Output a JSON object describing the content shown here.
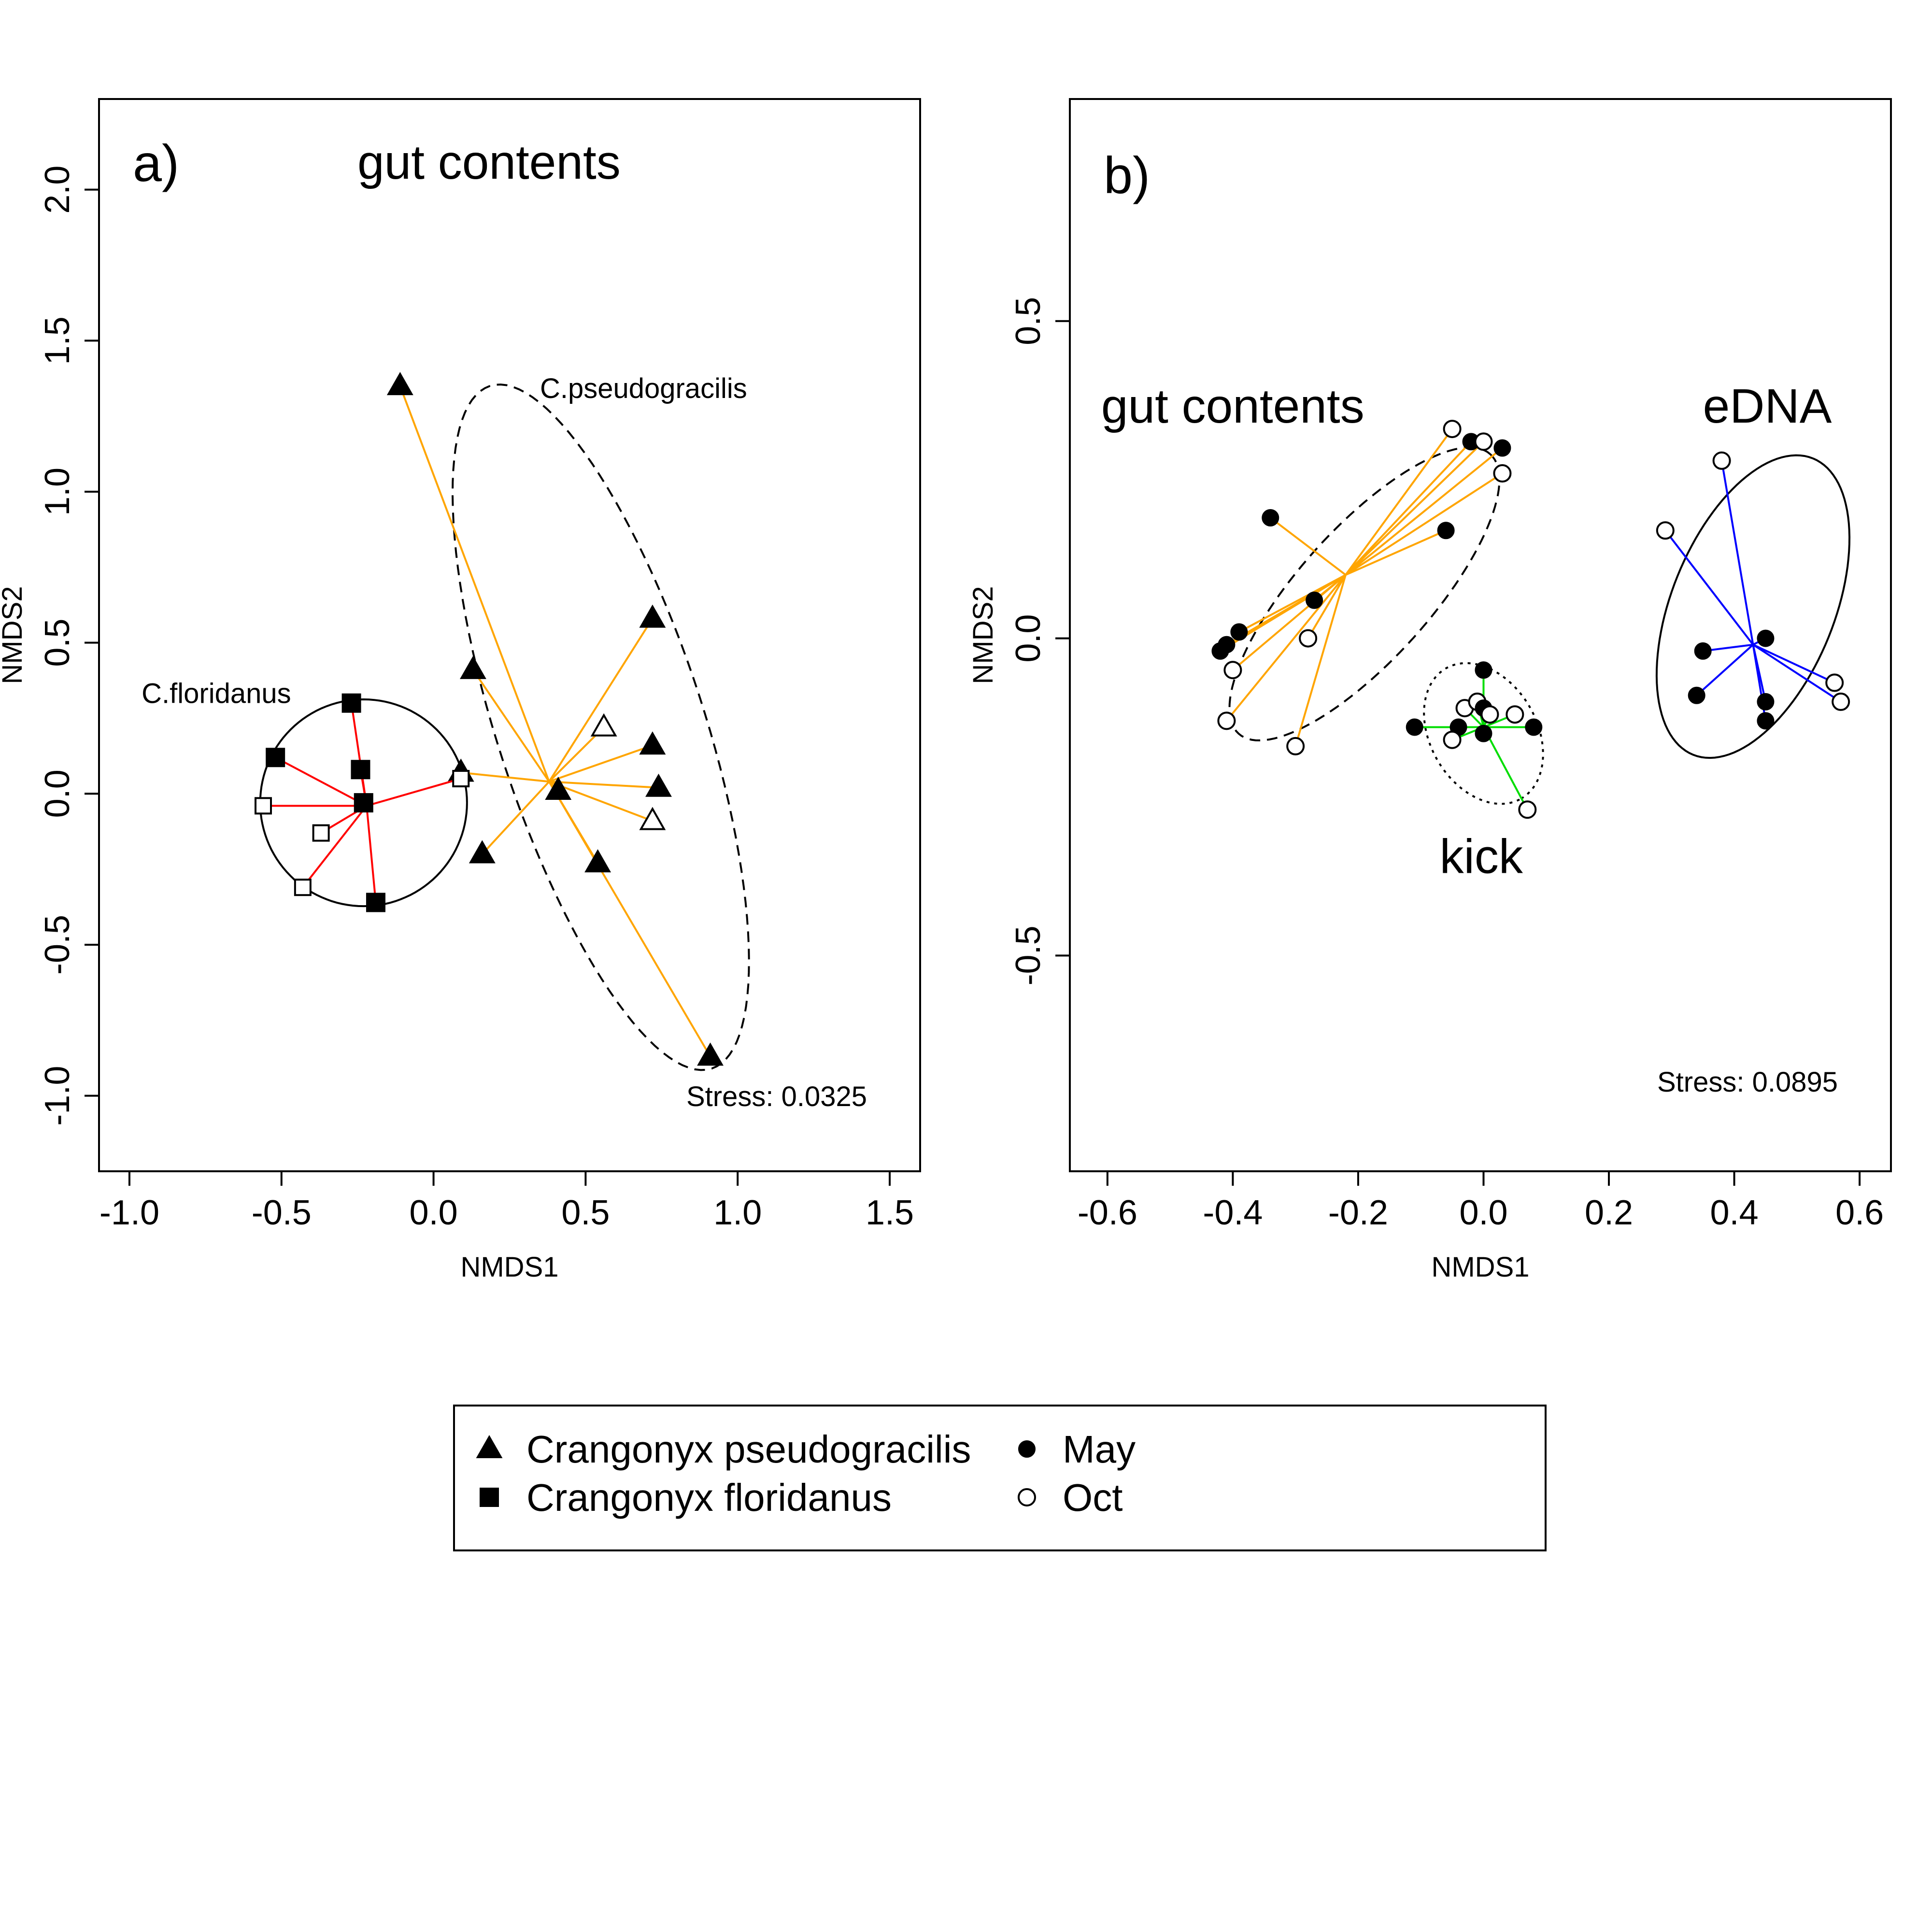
{
  "chart_data": [
    {
      "type": "scatter",
      "panel_label": "a)",
      "title": "gut contents",
      "xlabel": "NMDS1",
      "ylabel": "NMDS2",
      "xlim": [
        -1.1,
        1.6
      ],
      "ylim": [
        -1.25,
        2.3
      ],
      "xticks": [
        "-1.0",
        "-0.5",
        "0.0",
        "0.5",
        "1.0",
        "1.5"
      ],
      "xtick_values": [
        -1.0,
        -0.5,
        0.0,
        0.5,
        1.0,
        1.5
      ],
      "yticks": [
        "-1.0",
        "-0.5",
        "0.0",
        "0.5",
        "1.0",
        "1.5",
        "2.0"
      ],
      "ytick_values": [
        -1.0,
        -0.5,
        0.0,
        0.5,
        1.0,
        1.5,
        2.0
      ],
      "stress": "Stress: 0.0325",
      "groups": [
        {
          "label": "C.pseudogracilis",
          "label_pos": [
            0.35,
            1.31
          ],
          "color": "#FFA500",
          "ellipse_style": "dashed",
          "centroid": [
            0.38,
            0.04
          ],
          "ellipse": {
            "cx": 0.55,
            "cy": 0.22,
            "rx": 1.18,
            "ry": 0.34,
            "angle_deg": 108
          },
          "points": [
            {
              "x": -0.11,
              "y": 1.35,
              "shape": "triangle",
              "month": "May"
            },
            {
              "x": 0.72,
              "y": 0.58,
              "shape": "triangle",
              "month": "May"
            },
            {
              "x": 0.13,
              "y": 0.41,
              "shape": "triangle",
              "month": "May"
            },
            {
              "x": 0.56,
              "y": 0.22,
              "shape": "triangle",
              "month": "Oct"
            },
            {
              "x": 0.72,
              "y": 0.16,
              "shape": "triangle",
              "month": "May"
            },
            {
              "x": 0.74,
              "y": 0.02,
              "shape": "triangle",
              "month": "May"
            },
            {
              "x": 0.41,
              "y": 0.01,
              "shape": "triangle",
              "month": "May"
            },
            {
              "x": 0.09,
              "y": 0.07,
              "shape": "triangle",
              "month": "May"
            },
            {
              "x": 0.72,
              "y": -0.09,
              "shape": "triangle",
              "month": "Oct"
            },
            {
              "x": 0.16,
              "y": -0.2,
              "shape": "triangle",
              "month": "May"
            },
            {
              "x": 0.54,
              "y": -0.23,
              "shape": "triangle",
              "month": "May"
            },
            {
              "x": 0.91,
              "y": -0.87,
              "shape": "triangle",
              "month": "May"
            }
          ]
        },
        {
          "label": "C.floridanus",
          "label_pos": [
            -0.96,
            0.3
          ],
          "color": "#FF0000",
          "ellipse_style": "solid",
          "centroid": [
            -0.22,
            -0.04
          ],
          "ellipse": {
            "cx": -0.23,
            "cy": -0.03,
            "rx": 0.34,
            "ry": 0.34,
            "angle_deg": 0
          },
          "points": [
            {
              "x": -0.27,
              "y": 0.3,
              "shape": "square",
              "month": "May"
            },
            {
              "x": -0.52,
              "y": 0.12,
              "shape": "square",
              "month": "May"
            },
            {
              "x": -0.24,
              "y": 0.08,
              "shape": "square",
              "month": "May"
            },
            {
              "x": 0.09,
              "y": 0.05,
              "shape": "square",
              "month": "Oct"
            },
            {
              "x": -0.23,
              "y": -0.03,
              "shape": "square",
              "month": "May"
            },
            {
              "x": -0.56,
              "y": -0.04,
              "shape": "square",
              "month": "Oct"
            },
            {
              "x": -0.37,
              "y": -0.13,
              "shape": "square",
              "month": "Oct"
            },
            {
              "x": -0.43,
              "y": -0.31,
              "shape": "square",
              "month": "Oct"
            },
            {
              "x": -0.19,
              "y": -0.36,
              "shape": "square",
              "month": "May"
            }
          ]
        }
      ]
    },
    {
      "type": "scatter",
      "panel_label": "b)",
      "xlabel": "NMDS1",
      "ylabel": "NMDS2",
      "xlim": [
        -0.66,
        0.65
      ],
      "ylim": [
        -0.84,
        0.85
      ],
      "xticks": [
        "-0.6",
        "-0.4",
        "-0.2",
        "0.0",
        "0.2",
        "0.4",
        "0.6"
      ],
      "xtick_values": [
        -0.6,
        -0.4,
        -0.2,
        0.0,
        0.2,
        0.4,
        0.6
      ],
      "yticks": [
        "-0.5",
        "0.0",
        "0.5"
      ],
      "ytick_values": [
        -0.5,
        0.0,
        0.5
      ],
      "stress": "Stress: 0.0895",
      "groups": [
        {
          "label": "gut contents",
          "label_pos": [
            -0.61,
            0.34
          ],
          "color": "#FFA500",
          "ellipse_style": "dashed",
          "centroid": [
            -0.22,
            0.1
          ],
          "ellipse": {
            "cx": -0.19,
            "cy": 0.07,
            "rx": 0.3,
            "ry": 0.105,
            "angle_deg": 48
          },
          "points": [
            {
              "x": -0.05,
              "y": 0.33,
              "month": "Oct"
            },
            {
              "x": -0.02,
              "y": 0.31,
              "month": "May"
            },
            {
              "x": 0.0,
              "y": 0.31,
              "month": "Oct"
            },
            {
              "x": 0.03,
              "y": 0.3,
              "month": "May"
            },
            {
              "x": 0.03,
              "y": 0.26,
              "month": "Oct"
            },
            {
              "x": -0.34,
              "y": 0.19,
              "month": "May"
            },
            {
              "x": -0.06,
              "y": 0.17,
              "month": "May"
            },
            {
              "x": -0.27,
              "y": 0.06,
              "month": "May"
            },
            {
              "x": -0.28,
              "y": 0.0,
              "month": "Oct"
            },
            {
              "x": -0.39,
              "y": 0.01,
              "month": "May"
            },
            {
              "x": -0.41,
              "y": -0.01,
              "month": "May"
            },
            {
              "x": -0.42,
              "y": -0.02,
              "month": "May"
            },
            {
              "x": -0.4,
              "y": -0.05,
              "month": "Oct"
            },
            {
              "x": -0.41,
              "y": -0.13,
              "month": "Oct"
            },
            {
              "x": -0.3,
              "y": -0.17,
              "month": "Oct"
            }
          ]
        },
        {
          "label": "kick",
          "label_pos": [
            -0.07,
            -0.37
          ],
          "color": "#00DD00",
          "ellipse_style": "dotted",
          "centroid": [
            0.0,
            -0.14
          ],
          "ellipse": {
            "cx": 0.0,
            "cy": -0.15,
            "rx": 0.12,
            "ry": 0.085,
            "angle_deg": -60
          },
          "points": [
            {
              "x": 0.0,
              "y": -0.05,
              "month": "May"
            },
            {
              "x": -0.03,
              "y": -0.11,
              "month": "Oct"
            },
            {
              "x": -0.01,
              "y": -0.1,
              "month": "Oct"
            },
            {
              "x": 0.0,
              "y": -0.11,
              "month": "May"
            },
            {
              "x": 0.01,
              "y": -0.12,
              "month": "Oct"
            },
            {
              "x": 0.05,
              "y": -0.12,
              "month": "Oct"
            },
            {
              "x": -0.11,
              "y": -0.14,
              "month": "May"
            },
            {
              "x": -0.04,
              "y": -0.14,
              "month": "May"
            },
            {
              "x": 0.0,
              "y": -0.15,
              "month": "May"
            },
            {
              "x": 0.08,
              "y": -0.14,
              "month": "May"
            },
            {
              "x": -0.05,
              "y": -0.16,
              "month": "Oct"
            },
            {
              "x": 0.07,
              "y": -0.27,
              "month": "Oct"
            }
          ]
        },
        {
          "label": "eDNA",
          "label_pos": [
            0.35,
            0.34
          ],
          "color": "#0000FF",
          "ellipse_style": "solid",
          "centroid": [
            0.43,
            -0.01
          ],
          "ellipse": {
            "cx": 0.43,
            "cy": 0.05,
            "rx": 0.255,
            "ry": 0.13,
            "angle_deg": 68
          },
          "points": [
            {
              "x": 0.38,
              "y": 0.28,
              "month": "Oct"
            },
            {
              "x": 0.29,
              "y": 0.17,
              "month": "Oct"
            },
            {
              "x": 0.45,
              "y": 0.0,
              "month": "May"
            },
            {
              "x": 0.35,
              "y": -0.02,
              "month": "May"
            },
            {
              "x": 0.34,
              "y": -0.09,
              "month": "May"
            },
            {
              "x": 0.45,
              "y": -0.1,
              "month": "May"
            },
            {
              "x": 0.45,
              "y": -0.13,
              "month": "May"
            },
            {
              "x": 0.56,
              "y": -0.07,
              "month": "Oct"
            },
            {
              "x": 0.57,
              "y": -0.1,
              "month": "Oct"
            }
          ]
        }
      ]
    }
  ],
  "legend": {
    "entries": [
      {
        "symbol": "triangle-filled",
        "label": "Crangonyx pseudogracilis"
      },
      {
        "symbol": "square-filled",
        "label": "Crangonyx floridanus"
      },
      {
        "symbol": "circle-filled",
        "label": "May"
      },
      {
        "symbol": "circle-open",
        "label": "Oct"
      }
    ]
  }
}
